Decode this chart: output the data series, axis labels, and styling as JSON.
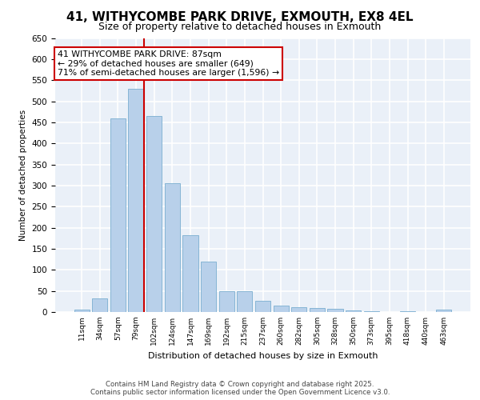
{
  "title_line1": "41, WITHYCOMBE PARK DRIVE, EXMOUTH, EX8 4EL",
  "title_line2": "Size of property relative to detached houses in Exmouth",
  "xlabel": "Distribution of detached houses by size in Exmouth",
  "ylabel": "Number of detached properties",
  "categories": [
    "11sqm",
    "34sqm",
    "57sqm",
    "79sqm",
    "102sqm",
    "124sqm",
    "147sqm",
    "169sqm",
    "192sqm",
    "215sqm",
    "237sqm",
    "260sqm",
    "282sqm",
    "305sqm",
    "328sqm",
    "350sqm",
    "373sqm",
    "395sqm",
    "418sqm",
    "440sqm",
    "463sqm"
  ],
  "values": [
    5,
    33,
    460,
    530,
    465,
    305,
    182,
    120,
    50,
    50,
    26,
    15,
    12,
    9,
    7,
    3,
    1,
    0,
    1,
    0,
    5
  ],
  "bar_color": "#b8d0ea",
  "bar_edge_color": "#7aaed0",
  "background_color": "#eaf0f8",
  "grid_color": "#ffffff",
  "vline_color": "#cc0000",
  "annotation_text": "41 WITHYCOMBE PARK DRIVE: 87sqm\n← 29% of detached houses are smaller (649)\n71% of semi-detached houses are larger (1,596) →",
  "annotation_box_color": "#ffffff",
  "annotation_box_edge": "#cc0000",
  "ylim": [
    0,
    650
  ],
  "yticks": [
    0,
    50,
    100,
    150,
    200,
    250,
    300,
    350,
    400,
    450,
    500,
    550,
    600,
    650
  ],
  "footer_line1": "Contains HM Land Registry data © Crown copyright and database right 2025.",
  "footer_line2": "Contains public sector information licensed under the Open Government Licence v3.0.",
  "title_fontsize": 11,
  "subtitle_fontsize": 9,
  "footer_fontsize": 6.2
}
